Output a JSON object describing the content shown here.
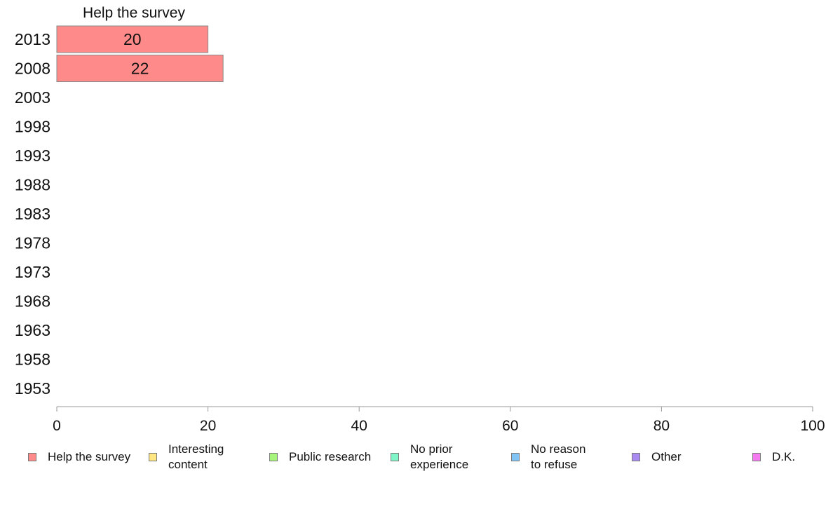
{
  "chart_data": {
    "type": "bar",
    "orientation": "horizontal",
    "stacked": true,
    "categories": [
      "2013",
      "2008",
      "2003",
      "1998",
      "1993",
      "1988",
      "1983",
      "1978",
      "1973",
      "1968",
      "1963",
      "1958",
      "1953"
    ],
    "series": [
      {
        "name": "Help the survey",
        "color": "#ff8a8a",
        "values": [
          20,
          22,
          null,
          null,
          null,
          null,
          null,
          null,
          null,
          null,
          null,
          null,
          null
        ]
      }
    ],
    "segment_labels": [
      "20",
      "22"
    ],
    "column_header": "Help the survey",
    "xlim": [
      0,
      100
    ],
    "xticks": [
      0,
      20,
      40,
      60,
      80,
      100
    ],
    "grid": false,
    "legend_position": "bottom",
    "legend": [
      {
        "label": "Help the survey",
        "color": "#ff8a8a"
      },
      {
        "label": "Interesting\ncontent",
        "color": "#ffe680"
      },
      {
        "label": "Public research",
        "color": "#a6f57a"
      },
      {
        "label": "No prior\nexperience",
        "color": "#80f5c8"
      },
      {
        "label": "No reason\nto refuse",
        "color": "#80c4f5"
      },
      {
        "label": "Other",
        "color": "#a98af0"
      },
      {
        "label": "D.K.",
        "color": "#f57af0"
      }
    ]
  }
}
